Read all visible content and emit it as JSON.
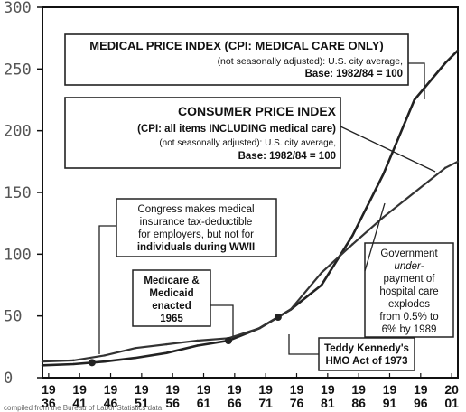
{
  "chart_data": {
    "type": "line",
    "ylim": [
      0,
      300
    ],
    "xlim": [
      1935,
      2002
    ],
    "y_ticks": [
      "300",
      "250",
      "200",
      "150",
      "100",
      "50",
      "0"
    ],
    "x_ticks": [
      {
        "top": "19",
        "bottom": "36",
        "year": 1936
      },
      {
        "top": "19",
        "bottom": "41",
        "year": 1941
      },
      {
        "top": "19",
        "bottom": "46",
        "year": 1946
      },
      {
        "top": "19",
        "bottom": "51",
        "year": 1951
      },
      {
        "top": "19",
        "bottom": "56",
        "year": 1956
      },
      {
        "top": "19",
        "bottom": "61",
        "year": 1961
      },
      {
        "top": "19",
        "bottom": "66",
        "year": 1966
      },
      {
        "top": "19",
        "bottom": "71",
        "year": 1971
      },
      {
        "top": "19",
        "bottom": "76",
        "year": 1976
      },
      {
        "top": "19",
        "bottom": "81",
        "year": 1981
      },
      {
        "top": "19",
        "bottom": "86",
        "year": 1986
      },
      {
        "top": "19",
        "bottom": "91",
        "year": 1991
      },
      {
        "top": "19",
        "bottom": "96",
        "year": 1996
      },
      {
        "top": "20",
        "bottom": "01",
        "year": 2001
      }
    ],
    "series": [
      {
        "label_lines": [
          "MEDICAL PRICE INDEX (CPI: MEDICAL CARE ONLY)",
          "(not seasonally adjusted): U.S. city average,",
          "Base: 1982/84 = 100"
        ],
        "color": "#222222",
        "x": [
          1935,
          1940,
          1945,
          1950,
          1955,
          1960,
          1965,
          1970,
          1975,
          1980,
          1985,
          1990,
          1995,
          2000,
          2002
        ],
        "y": [
          10,
          11,
          13,
          16,
          20,
          26,
          30,
          40,
          55,
          75,
          115,
          165,
          225,
          255,
          265
        ]
      },
      {
        "label_lines": [
          "CONSUMER PRICE INDEX",
          "(CPI: all items INCLUDING medical care)",
          "(not seasonally adjusted): U.S. city average,",
          "Base: 1982/84 = 100"
        ],
        "color": "#333333",
        "x": [
          1935,
          1940,
          1945,
          1950,
          1955,
          1960,
          1965,
          1970,
          1975,
          1980,
          1985,
          1990,
          1995,
          2000,
          2002
        ],
        "y": [
          13,
          14,
          18,
          24,
          27,
          30,
          32,
          40,
          55,
          85,
          108,
          130,
          150,
          170,
          175
        ]
      }
    ],
    "annotations": [
      {
        "lines": [
          "Congress makes medical",
          "insurance  tax-deductible",
          "for employers, but not for",
          "individuals during WWII"
        ],
        "bold": [
          false,
          false,
          false,
          true
        ],
        "pointer_year": 1943
      },
      {
        "lines": [
          "Medicare &",
          "Medicaid",
          "enacted",
          "1965"
        ],
        "bold": [
          false,
          false,
          false,
          false
        ],
        "pointer_year": 1965
      },
      {
        "lines": [
          "Teddy Kennedy's",
          "HMO Act of 1973"
        ],
        "bold": [
          false,
          false
        ],
        "pointer_year": 1973
      },
      {
        "lines": [
          "Government",
          "under-",
          "payment of",
          "hospital care",
          "explodes",
          "from 0.5% to",
          "6% by 1989"
        ],
        "bold": [
          false,
          false,
          false,
          false,
          false,
          false,
          false
        ],
        "pointer_year": 1989
      }
    ]
  },
  "footnote": "compiled from the Bureau of Labor Statistics data"
}
